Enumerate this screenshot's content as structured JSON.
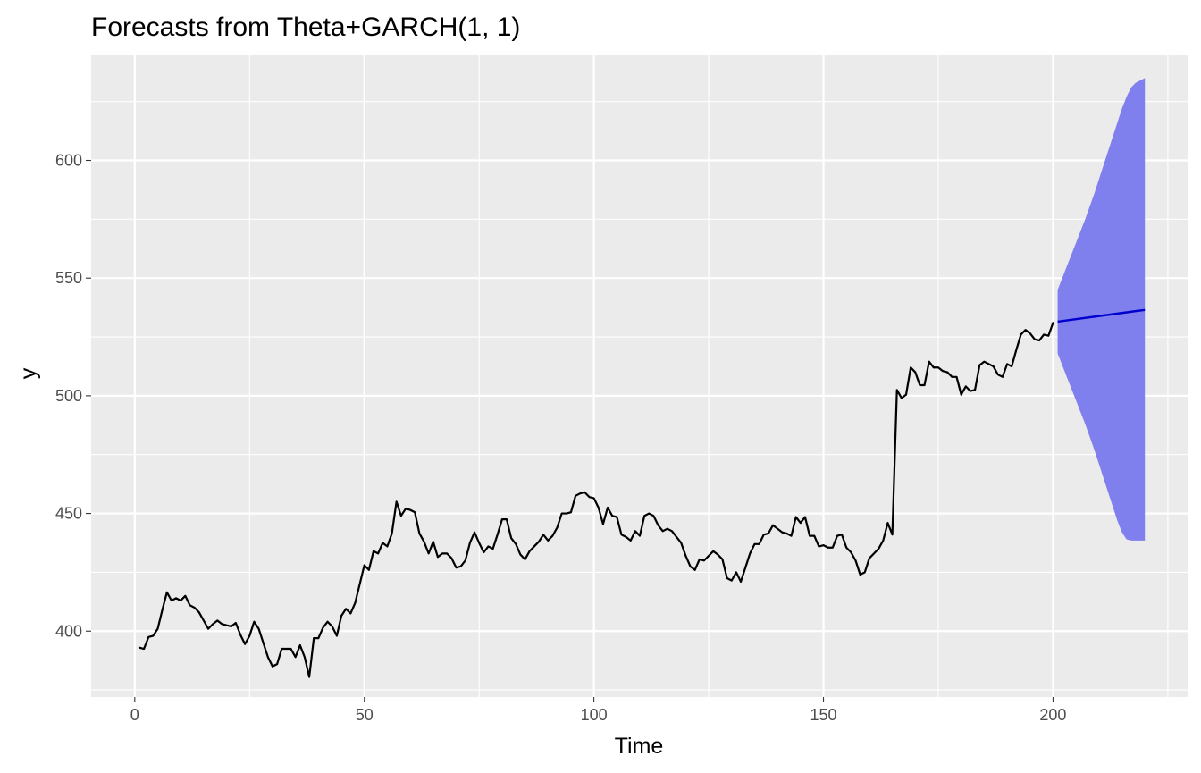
{
  "chart_data": {
    "type": "line",
    "title": "Forecasts from Theta+GARCH(1, 1)",
    "xlabel": "Time",
    "ylabel": "y",
    "xlim": [
      -9.5,
      229.5
    ],
    "ylim": [
      372,
      645
    ],
    "x_ticks": [
      0,
      50,
      100,
      150,
      200
    ],
    "x_tick_labels": [
      "0",
      "50",
      "100",
      "150",
      "200"
    ],
    "y_ticks": [
      400,
      450,
      500,
      550,
      600
    ],
    "y_tick_labels": [
      "400",
      "450",
      "500",
      "550",
      "600"
    ],
    "grid": true,
    "legend": "none",
    "colors": {
      "panel_background": "#ebebeb",
      "grid": "#ffffff",
      "series": "#000000",
      "forecast_line": "#0000cc",
      "forecast_band": "#7f7fee"
    },
    "series": [
      {
        "x_start": 1,
        "values": [
          393,
          392.5,
          397.5,
          398,
          401,
          409,
          416.5,
          413,
          414,
          413,
          415,
          411,
          410,
          408,
          404.5,
          401,
          403,
          404.5,
          403,
          402.5,
          402,
          403.5,
          398.5,
          394.5,
          398,
          404,
          401,
          395,
          389,
          385,
          386,
          392.5,
          392.5,
          392.5,
          389,
          394,
          389,
          380.5,
          397,
          397,
          401.5,
          404,
          402,
          398,
          406.5,
          409.5,
          407.5,
          412,
          420,
          428,
          426,
          434,
          433,
          437.5,
          436,
          441.5,
          455,
          449,
          452,
          451.5,
          450.5,
          441.5,
          438,
          433,
          438,
          431.5,
          433,
          433,
          431,
          427,
          427.5,
          430,
          437.5,
          442,
          437.5,
          433.5,
          436,
          435,
          441,
          447.5,
          447.5,
          439.5,
          437,
          432.5,
          430.5,
          434,
          436,
          438,
          441,
          438.5,
          440.5,
          444,
          450,
          450,
          450.5,
          457.5,
          458.5,
          459,
          457,
          456.5,
          452.5,
          445.5,
          452.5,
          449,
          448.5,
          441,
          440,
          438.5,
          442.5,
          440.5,
          449,
          450,
          449,
          445,
          442.5,
          443.5,
          442.5,
          440,
          437.5,
          432,
          427.5,
          426,
          430.5,
          430,
          432,
          434,
          432.5,
          430.5,
          422.5,
          421.5,
          425,
          421,
          427,
          433,
          437,
          437,
          441,
          441.5,
          445,
          443.5,
          442,
          441.5,
          440.5,
          448.5,
          446,
          448.5,
          440.5,
          440.5,
          436,
          436.5,
          435.5,
          435.5,
          440.5,
          441,
          435.5,
          433.5,
          430,
          424,
          425,
          431,
          433,
          435,
          438.5,
          446,
          441,
          502.5,
          499,
          500.5,
          512,
          510,
          504.5,
          504.5,
          514.5,
          512,
          512,
          510.5,
          510,
          508,
          508,
          500.5,
          504,
          502,
          502.5,
          513,
          514.5,
          513.5,
          512.5,
          509,
          508,
          513.5,
          512.5,
          519.5,
          526,
          528,
          526.5,
          524,
          523.5,
          526,
          525.5,
          531
        ]
      }
    ],
    "forecast": {
      "x_start": 201,
      "x_end": 220,
      "point_start": 531.5,
      "point_end": 536.5,
      "band_upper": [
        545,
        550,
        555,
        560,
        565,
        570,
        575,
        580.5,
        586,
        592,
        598,
        604,
        610,
        616,
        622,
        627,
        631,
        633,
        634,
        635
      ],
      "band_lower": [
        518,
        513,
        508,
        503,
        498,
        493,
        488,
        482.5,
        477,
        471,
        465,
        459,
        453,
        447,
        442,
        439,
        438.5,
        438.5,
        438.5,
        438.5
      ]
    }
  }
}
